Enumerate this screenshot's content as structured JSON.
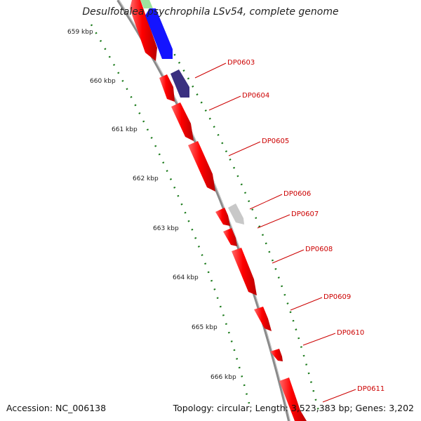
{
  "title": "Desulfotalea psychrophila LSv54, complete genome",
  "footer": {
    "accession": "Accession: NC_006138",
    "summary": "Topology: circular; Length: 3,523,383 bp; Genes: 3,202"
  },
  "ruler_ticks": [
    "659 kbp",
    "660 kbp",
    "661 kbp",
    "662 kbp",
    "663 kbp",
    "664 kbp",
    "665 kbp",
    "666 kbp"
  ],
  "genes": [
    "DP0603",
    "DP0604",
    "DP0605",
    "DP0606",
    "DP0607",
    "DP0608",
    "DP0609",
    "DP0610",
    "DP0611"
  ],
  "colors": {
    "gene_red": "#ff0000",
    "gene_blue": "#0000ff",
    "gene_navy": "#3a3080",
    "gene_grey": "#c8c8c8",
    "gene_green": "#9de39d",
    "backbone": "#8a8a8a",
    "dots": "#1a7a1a",
    "label": "#cc0000"
  }
}
